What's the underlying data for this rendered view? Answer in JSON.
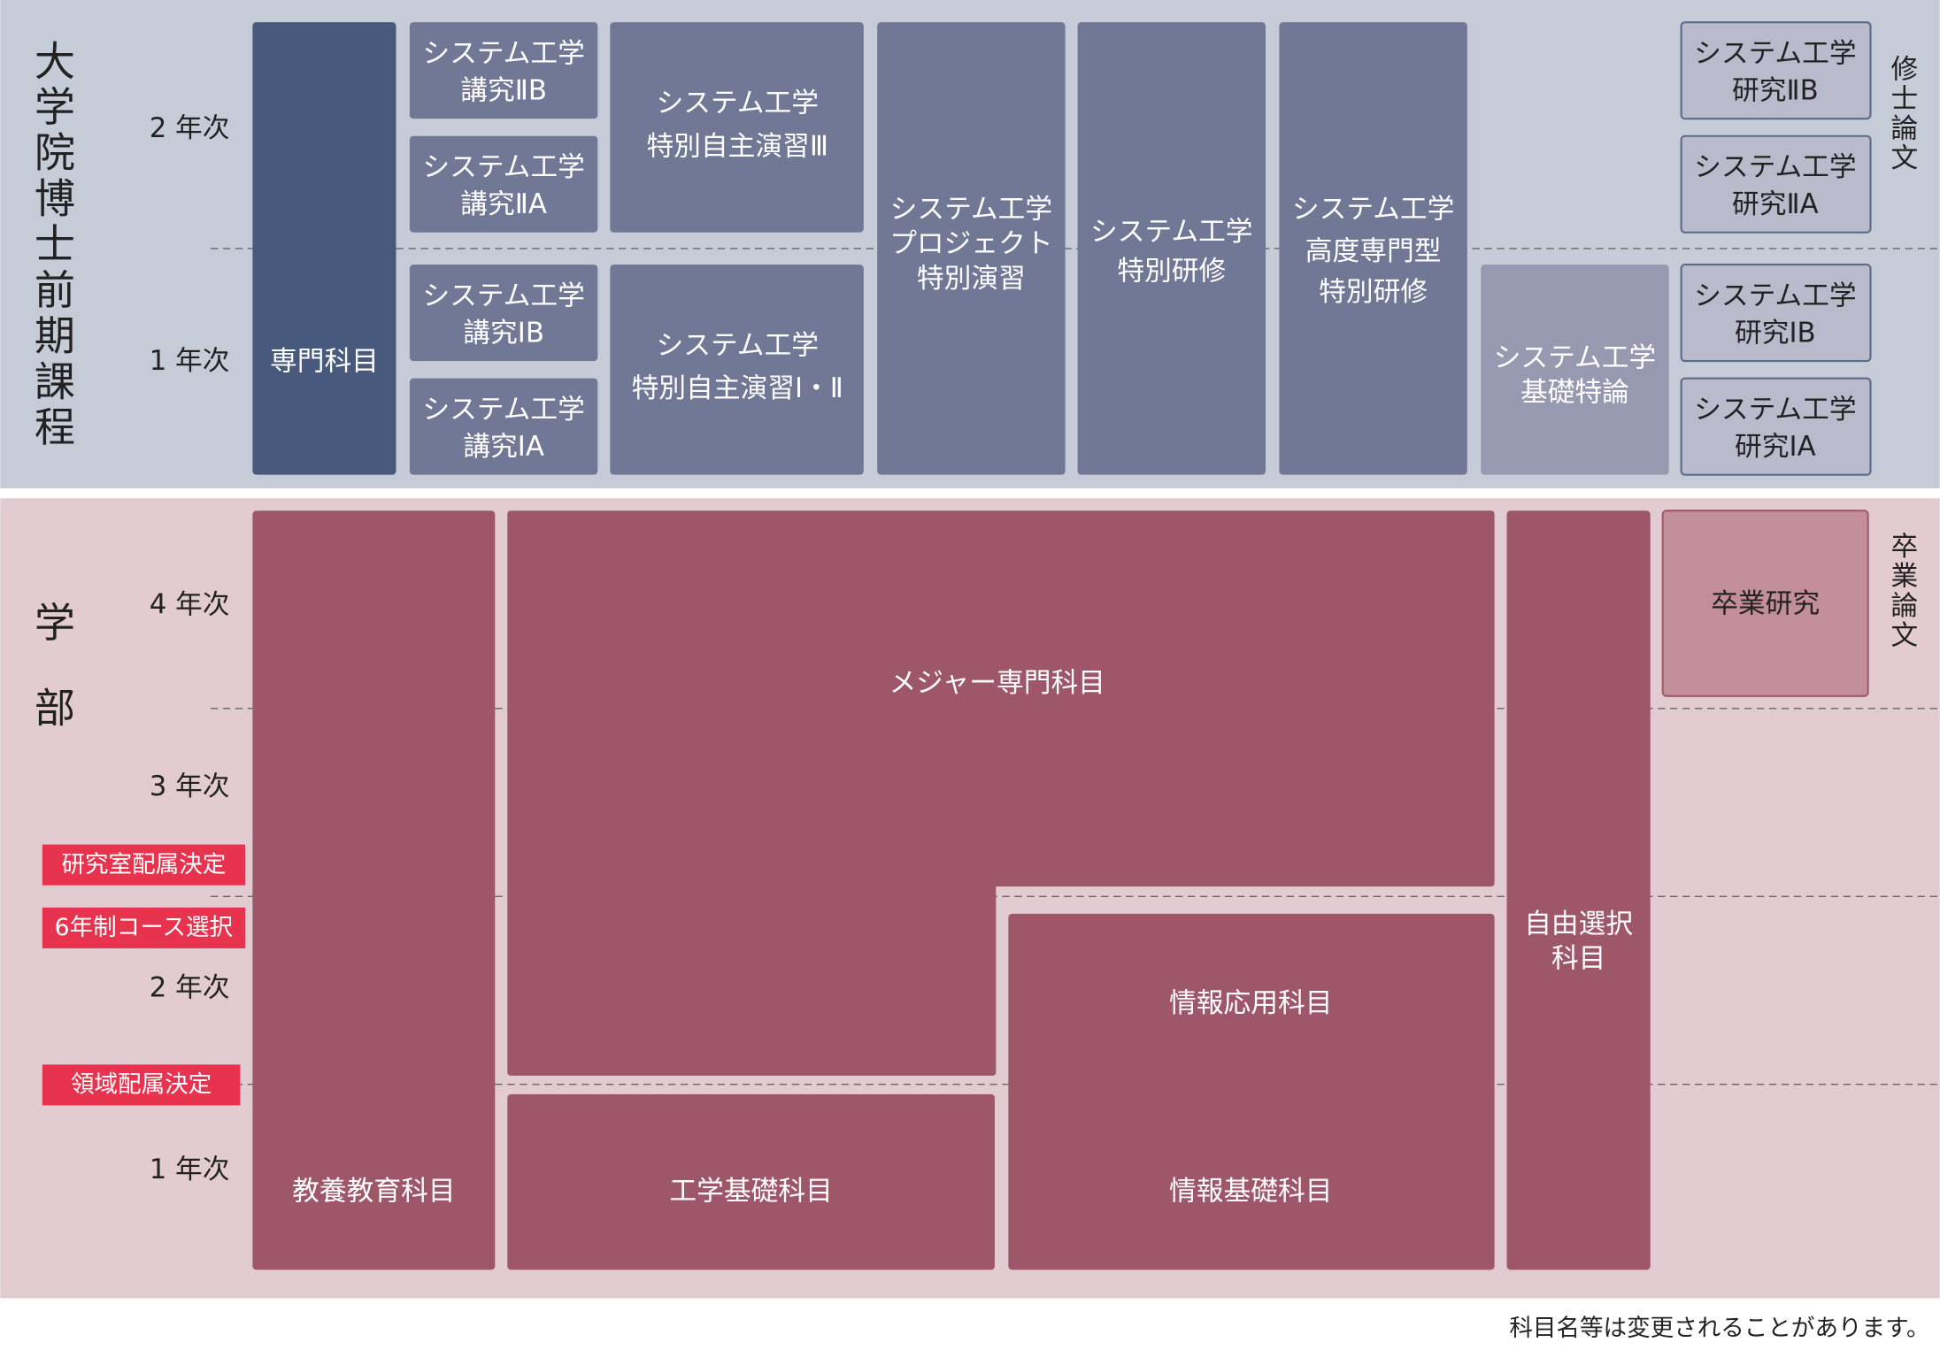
{
  "graduate": {
    "title": "大学院博士前期課程",
    "years": [
      "2 年次",
      "1 年次"
    ],
    "thesis": "修士論文",
    "courses": [
      {
        "lines": [
          "専門科目"
        ]
      },
      {
        "lines": [
          "システム工学",
          "講究ⅡB"
        ]
      },
      {
        "lines": [
          "システム工学",
          "講究ⅡA"
        ]
      },
      {
        "lines": [
          "システム工学",
          "講究ⅠB"
        ]
      },
      {
        "lines": [
          "システム工学",
          "講究ⅠA"
        ]
      },
      {
        "lines": [
          "システム工学",
          "特別自主演習Ⅲ"
        ]
      },
      {
        "lines": [
          "システム工学",
          "特別自主演習Ⅰ・Ⅱ"
        ]
      },
      {
        "lines": [
          "システム工学",
          "プロジェクト",
          "特別演習"
        ]
      },
      {
        "lines": [
          "システム工学",
          "特別研修"
        ]
      },
      {
        "lines": [
          "システム工学",
          "高度専門型",
          "特別研修"
        ]
      },
      {
        "lines": [
          "システム工学",
          "基礎特論"
        ]
      },
      {
        "lines": [
          "システム工学",
          "研究ⅡB"
        ]
      },
      {
        "lines": [
          "システム工学",
          "研究ⅡA"
        ]
      },
      {
        "lines": [
          "システム工学",
          "研究ⅠB"
        ]
      },
      {
        "lines": [
          "システム工学",
          "研究ⅠA"
        ]
      }
    ]
  },
  "undergraduate": {
    "title": "学部",
    "years": [
      "4 年次",
      "3 年次",
      "2 年次",
      "1 年次"
    ],
    "thesis": "卒業論文",
    "milestones": [
      "研究室配属決定",
      "6年制コース選択",
      "領域配属決定"
    ],
    "courses": [
      {
        "lines": [
          "教養教育科目"
        ]
      },
      {
        "lines": [
          "メジャー専門科目"
        ]
      },
      {
        "lines": [
          "工学基礎科目"
        ]
      },
      {
        "lines": [
          "情報応用科目"
        ]
      },
      {
        "lines": [
          "情報基礎科目"
        ]
      },
      {
        "lines": [
          "自由選択",
          "科目"
        ]
      },
      {
        "lines": [
          "卒業研究"
        ]
      }
    ]
  },
  "note": "科目名等は変更されることがあります。"
}
